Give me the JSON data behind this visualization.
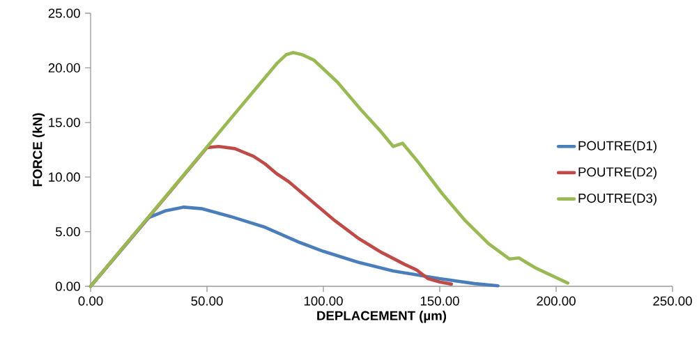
{
  "chart_data": {
    "type": "line",
    "xlabel": "DEPLACEMENT (µm)",
    "ylabel": "FORCE (kN)",
    "xlim": [
      0,
      250
    ],
    "ylim": [
      0,
      25
    ],
    "xticks": [
      {
        "value": 0,
        "label": "0.00"
      },
      {
        "value": 50,
        "label": "50.00"
      },
      {
        "value": 100,
        "label": "100.00"
      },
      {
        "value": 150,
        "label": "150.00"
      },
      {
        "value": 200,
        "label": "200.00"
      },
      {
        "value": 250,
        "label": "250.00"
      }
    ],
    "yticks": [
      {
        "value": 0,
        "label": "0.00"
      },
      {
        "value": 5,
        "label": "5.00"
      },
      {
        "value": 10,
        "label": "10.00"
      },
      {
        "value": 15,
        "label": "15.00"
      },
      {
        "value": 20,
        "label": "20.00"
      },
      {
        "value": 25,
        "label": "25.00"
      }
    ],
    "legend": "right",
    "grid": false,
    "series": [
      {
        "name": "POUTRE(D1)",
        "color": "#4a7ebb",
        "x": [
          0,
          25,
          32,
          40,
          48,
          60,
          75,
          90,
          100,
          115,
          130,
          150,
          165,
          175
        ],
        "values": [
          0,
          6.3,
          6.9,
          7.25,
          7.1,
          6.4,
          5.4,
          4.0,
          3.2,
          2.2,
          1.4,
          0.7,
          0.25,
          0.05
        ]
      },
      {
        "name": "POUTRE(D2)",
        "color": "#be4b48",
        "x": [
          0,
          50,
          55,
          62,
          70,
          75,
          80,
          85,
          95,
          105,
          115,
          125,
          135,
          140,
          145,
          150,
          155
        ],
        "values": [
          0,
          12.7,
          12.8,
          12.6,
          11.9,
          11.2,
          10.3,
          9.6,
          7.8,
          6.0,
          4.4,
          3.1,
          2.0,
          1.5,
          0.7,
          0.4,
          0.2
        ]
      },
      {
        "name": "POUTRE(D3)",
        "color": "#98b954",
        "x": [
          0,
          20,
          40,
          60,
          80,
          84,
          87,
          91,
          96,
          106,
          116,
          125,
          130,
          134,
          141,
          151,
          161,
          171,
          180,
          184,
          191,
          205
        ],
        "values": [
          0,
          5.1,
          10.2,
          15.3,
          20.4,
          21.2,
          21.4,
          21.2,
          20.7,
          18.7,
          16.2,
          14.1,
          12.8,
          13.1,
          11.3,
          8.5,
          6.0,
          3.9,
          2.5,
          2.6,
          1.7,
          0.3
        ]
      }
    ]
  }
}
